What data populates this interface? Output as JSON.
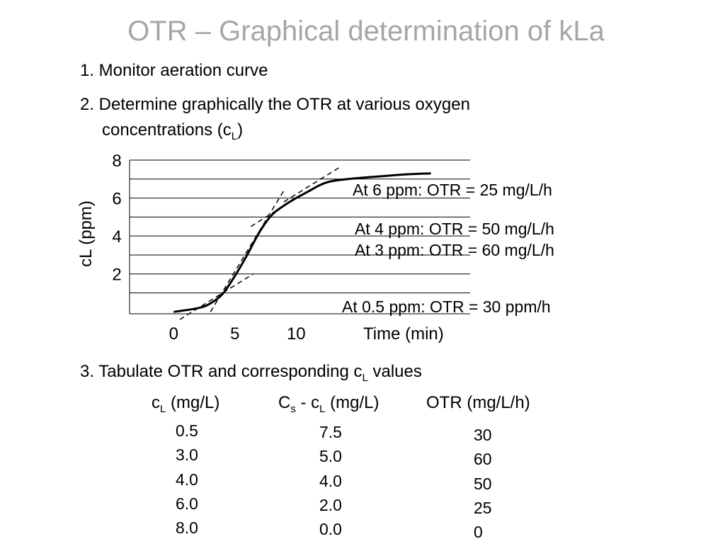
{
  "title": "OTR – Graphical determination of kLa",
  "steps": {
    "s1": "1. Monitor aeration curve",
    "s2a": "2. Determine graphically the OTR at various oxygen",
    "s2b": "concentrations (c",
    "s2b_sub": "L",
    "s2b_end": ")",
    "s3": "3. Tabulate OTR and corresponding c",
    "s3_sub": "L",
    "s3_end": " values"
  },
  "chart_data": {
    "type": "line",
    "xlabel": "Time (min)",
    "ylabel": "cL (ppm)",
    "x_ticks": [
      0,
      5,
      10
    ],
    "y_ticks": [
      2,
      4,
      6,
      8
    ],
    "xlim": [
      -3.6,
      24.2
    ],
    "ylim": [
      -0.1,
      8.0
    ],
    "grid": true,
    "series": [
      {
        "values": [
          [
            0,
            0.0
          ],
          [
            2,
            0.2
          ],
          [
            3,
            0.45
          ],
          [
            4,
            0.95
          ],
          [
            5,
            1.9
          ],
          [
            6,
            3.0
          ],
          [
            7,
            4.2
          ],
          [
            8,
            5.1
          ],
          [
            9,
            5.6
          ],
          [
            10,
            6.0
          ],
          [
            11,
            6.35
          ],
          [
            12,
            6.7
          ],
          [
            13,
            6.9
          ],
          [
            15,
            7.05
          ],
          [
            17,
            7.15
          ],
          [
            19,
            7.25
          ],
          [
            21,
            7.3
          ],
          [
            19.2,
            7.34
          ]
        ]
      }
    ],
    "tangents": [
      {
        "x": [
          0.5,
          6.5
        ],
        "y": [
          -0.4,
          2.0
        ]
      },
      {
        "x": [
          3.0,
          9.0
        ],
        "y": [
          0.0,
          6.4
        ]
      },
      {
        "x": [
          6.3,
          10.5
        ],
        "y": [
          4.5,
          6.2
        ]
      },
      {
        "x": [
          9.0,
          13.5
        ],
        "y": [
          5.8,
          7.6
        ]
      }
    ],
    "annotations": [
      "At 6 ppm: OTR = 25 mg/L/h",
      "At 4 ppm: OTR = 50 mg/L/h",
      "At 3 ppm: OTR = 60 mg/L/h",
      "At 0.5 ppm: OTR = 30 ppm/h"
    ]
  },
  "table": {
    "h1": "c",
    "h1_sub": "L",
    "h1_end": " (mg/L)",
    "h2": "C",
    "h2_sub": "s",
    "h2_mid": " - c",
    "h2_sub2": "L",
    "h2_end": " (mg/L)",
    "h3": "OTR (mg/L/h)",
    "cl": [
      "0.5",
      "3.0",
      "4.0",
      "6.0",
      "8.0"
    ],
    "diff": [
      "7.5",
      "5.0",
      "4.0",
      "2.0",
      "0.0"
    ],
    "otr": [
      "30",
      "60",
      "50",
      "25",
      "0"
    ]
  }
}
